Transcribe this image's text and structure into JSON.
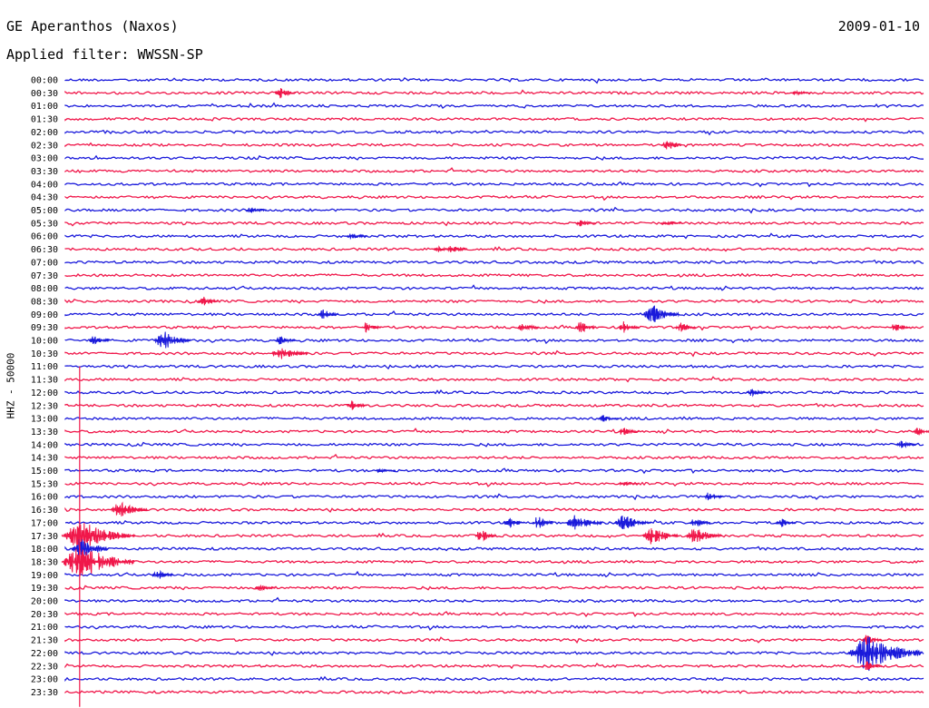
{
  "header": {
    "station": "GE Aperanthos (Naxos)",
    "date": "2009-01-10",
    "filter_label": "Applied filter:",
    "filter_value": "WWSSN-SP"
  },
  "side_label": "HHZ - 50000",
  "colors": {
    "blue": "#1a1adb",
    "red": "#f0174a"
  },
  "chart_data": {
    "type": "line",
    "title": "GE Aperanthos (Naxos)",
    "ylabel": "HHZ - 50000",
    "row_labels": [
      "00:00",
      "00:30",
      "01:00",
      "01:30",
      "02:00",
      "02:30",
      "03:00",
      "03:30",
      "04:00",
      "04:30",
      "05:00",
      "05:30",
      "06:00",
      "06:30",
      "07:00",
      "07:30",
      "08:00",
      "08:30",
      "09:00",
      "09:30",
      "10:00",
      "10:30",
      "11:00",
      "11:30",
      "12:00",
      "12:30",
      "13:00",
      "13:30",
      "14:00",
      "14:30",
      "15:00",
      "15:30",
      "16:00",
      "16:30",
      "17:00",
      "17:30",
      "18:00",
      "18:30",
      "19:00",
      "19:30",
      "20:00",
      "20:30",
      "21:00",
      "21:30",
      "22:00",
      "22:30",
      "23:00",
      "23:30"
    ],
    "row_minutes": 30,
    "row_colors": [
      "blue",
      "red"
    ],
    "events": [
      {
        "row": "00:30",
        "minute": 7.5,
        "amplitude": 7
      },
      {
        "row": "00:30",
        "minute": 25.5,
        "amplitude": 3
      },
      {
        "row": "02:30",
        "minute": 21.0,
        "amplitude": 9
      },
      {
        "row": "05:00",
        "minute": 6.5,
        "amplitude": 5
      },
      {
        "row": "05:30",
        "minute": 18.0,
        "amplitude": 4
      },
      {
        "row": "05:30",
        "minute": 21.0,
        "amplitude": 3
      },
      {
        "row": "06:00",
        "minute": 10.0,
        "amplitude": 4
      },
      {
        "row": "06:30",
        "minute": 13.0,
        "amplitude": 4
      },
      {
        "row": "06:30",
        "minute": 13.5,
        "amplitude": 7
      },
      {
        "row": "08:30",
        "minute": 4.8,
        "amplitude": 7
      },
      {
        "row": "09:00",
        "minute": 9.0,
        "amplitude": 7
      },
      {
        "row": "09:00",
        "minute": 20.5,
        "amplitude": 12
      },
      {
        "row": "09:30",
        "minute": 10.5,
        "amplitude": 6
      },
      {
        "row": "09:30",
        "minute": 16.0,
        "amplitude": 7
      },
      {
        "row": "09:30",
        "minute": 18.0,
        "amplitude": 9
      },
      {
        "row": "09:30",
        "minute": 19.5,
        "amplitude": 7
      },
      {
        "row": "09:30",
        "minute": 21.5,
        "amplitude": 7
      },
      {
        "row": "09:30",
        "minute": 29.0,
        "amplitude": 6
      },
      {
        "row": "10:00",
        "minute": 1.0,
        "amplitude": 6
      },
      {
        "row": "10:00",
        "minute": 3.4,
        "amplitude": 12
      },
      {
        "row": "10:00",
        "minute": 7.5,
        "amplitude": 5
      },
      {
        "row": "10:30",
        "minute": 7.5,
        "amplitude": 10
      },
      {
        "row": "12:00",
        "minute": 24.0,
        "amplitude": 5
      },
      {
        "row": "12:30",
        "minute": 10.0,
        "amplitude": 6
      },
      {
        "row": "13:00",
        "minute": 18.8,
        "amplitude": 4
      },
      {
        "row": "13:30",
        "minute": 19.5,
        "amplitude": 7
      },
      {
        "row": "13:30",
        "minute": 29.8,
        "amplitude": 5
      },
      {
        "row": "14:00",
        "minute": 29.2,
        "amplitude": 5
      },
      {
        "row": "15:00",
        "minute": 11.0,
        "amplitude": 3
      },
      {
        "row": "15:30",
        "minute": 19.5,
        "amplitude": 3
      },
      {
        "row": "16:00",
        "minute": 22.5,
        "amplitude": 6
      },
      {
        "row": "16:30",
        "minute": 1.9,
        "amplitude": 11
      },
      {
        "row": "17:00",
        "minute": 15.5,
        "amplitude": 8
      },
      {
        "row": "17:00",
        "minute": 16.5,
        "amplitude": 9
      },
      {
        "row": "17:00",
        "minute": 17.8,
        "amplitude": 10
      },
      {
        "row": "17:00",
        "minute": 19.5,
        "amplitude": 10
      },
      {
        "row": "17:00",
        "minute": 22.0,
        "amplitude": 7
      },
      {
        "row": "17:00",
        "minute": 25.0,
        "amplitude": 6
      },
      {
        "row": "17:30",
        "minute": 0.5,
        "amplitude": 18
      },
      {
        "row": "17:30",
        "minute": 14.5,
        "amplitude": 9
      },
      {
        "row": "17:30",
        "minute": 20.5,
        "amplitude": 11
      },
      {
        "row": "17:30",
        "minute": 22.0,
        "amplitude": 10
      },
      {
        "row": "18:00",
        "minute": 0.5,
        "amplitude": 14
      },
      {
        "row": "18:30",
        "minute": 0.5,
        "amplitude": 22
      },
      {
        "row": "19:00",
        "minute": 3.2,
        "amplitude": 8
      },
      {
        "row": "19:30",
        "minute": 6.8,
        "amplitude": 4
      },
      {
        "row": "21:30",
        "minute": 28.0,
        "amplitude": 7
      },
      {
        "row": "22:00",
        "minute": 28.0,
        "amplitude": 22
      },
      {
        "row": "22:30",
        "minute": 28.0,
        "amplitude": 6
      }
    ]
  }
}
